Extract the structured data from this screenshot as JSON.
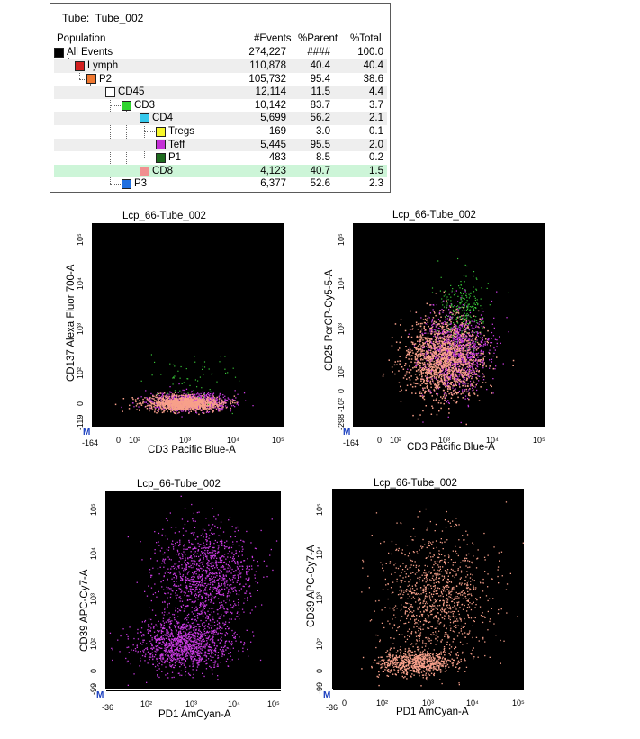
{
  "hierarchy": {
    "tube_label": "Tube:",
    "tube_name": "Tube_002",
    "columns": {
      "population": "Population",
      "events": "#Events",
      "parent": "%Parent",
      "total": "%Total"
    },
    "rows": [
      {
        "name": "All Events",
        "color": "#000000",
        "events": "274,227",
        "parent": "####",
        "total": "100.0"
      },
      {
        "name": "Lymph",
        "color": "#d21f1f",
        "events": "110,878",
        "parent": "40.4",
        "total": "40.4"
      },
      {
        "name": "P2",
        "color": "#f07830",
        "events": "105,732",
        "parent": "95.4",
        "total": "38.6"
      },
      {
        "name": "CD45",
        "color": "#ffffff",
        "events": "12,114",
        "parent": "11.5",
        "total": "4.4"
      },
      {
        "name": "CD3",
        "color": "#2ed42e",
        "events": "10,142",
        "parent": "83.7",
        "total": "3.7"
      },
      {
        "name": "CD4",
        "color": "#35c8ec",
        "events": "5,699",
        "parent": "56.2",
        "total": "2.1"
      },
      {
        "name": "Tregs",
        "color": "#f7f72a",
        "events": "169",
        "parent": "3.0",
        "total": "0.1"
      },
      {
        "name": "Teff",
        "color": "#c42fd6",
        "events": "5,445",
        "parent": "95.5",
        "total": "2.0"
      },
      {
        "name": "P1",
        "color": "#1e6b1e",
        "events": "483",
        "parent": "8.5",
        "total": "0.2"
      },
      {
        "name": "CD8",
        "color": "#f09090",
        "events": "4,123",
        "parent": "40.7",
        "total": "1.5"
      },
      {
        "name": "P3",
        "color": "#1f6fe0",
        "events": "6,377",
        "parent": "52.6",
        "total": "2.3"
      }
    ]
  },
  "plots": [
    {
      "title": "Lcp_66-Tube_002",
      "ylabel": "CD137 Alexa Fluor 700-A",
      "xlabel": "CD3 Pacific Blue-A",
      "xticks": [
        "0",
        "10²",
        "10³",
        "10⁴",
        "10⁵"
      ],
      "xmin_label": "-164",
      "yticks": [
        "0",
        "10²",
        "10³",
        "10⁴",
        "10⁵"
      ],
      "ymin_label": "-119",
      "logo": "M"
    },
    {
      "title": "Lcp_66-Tube_002",
      "ylabel": "CD25 PerCP-Cy5-5-A",
      "xlabel": "CD3 Pacific Blue-A",
      "xticks": [
        "0",
        "10²",
        "10³",
        "10⁴",
        "10⁵"
      ],
      "xmin_label": "-164",
      "yticks": [
        "-10²",
        "0",
        "10²",
        "10³",
        "10⁴",
        "10⁵"
      ],
      "ymin_label": "-298",
      "logo": "M"
    },
    {
      "title": "Lcp_66-Tube_002",
      "ylabel": "CD39 APC-Cy7-A",
      "xlabel": "PD1 AmCyan-A",
      "xticks": [
        "10²",
        "10³",
        "10⁴",
        "10⁵"
      ],
      "xmin_label": "-36",
      "yticks": [
        "0",
        "10²",
        "10³",
        "10⁴",
        "10⁵"
      ],
      "ymin_label": "-99",
      "logo": "M"
    },
    {
      "title": "Lcp_66-Tube_002",
      "ylabel": "CD39 APC-Cy7-A",
      "xlabel": "PD1 AmCyan-A",
      "xticks": [
        "0",
        "10²",
        "10³",
        "10⁴",
        "10⁵"
      ],
      "xmin_label": "-36",
      "yticks": [
        "0",
        "10²",
        "10³",
        "10⁴",
        "10⁵"
      ],
      "ymin_label": "-99",
      "logo": "M"
    }
  ],
  "colors": {
    "plot_bg": "#000000",
    "cd8_pink": "#f7a08a",
    "teff_magenta": "#c93ae0",
    "cd3_green": "#38c838",
    "selected_row": "#cdf5d8"
  }
}
